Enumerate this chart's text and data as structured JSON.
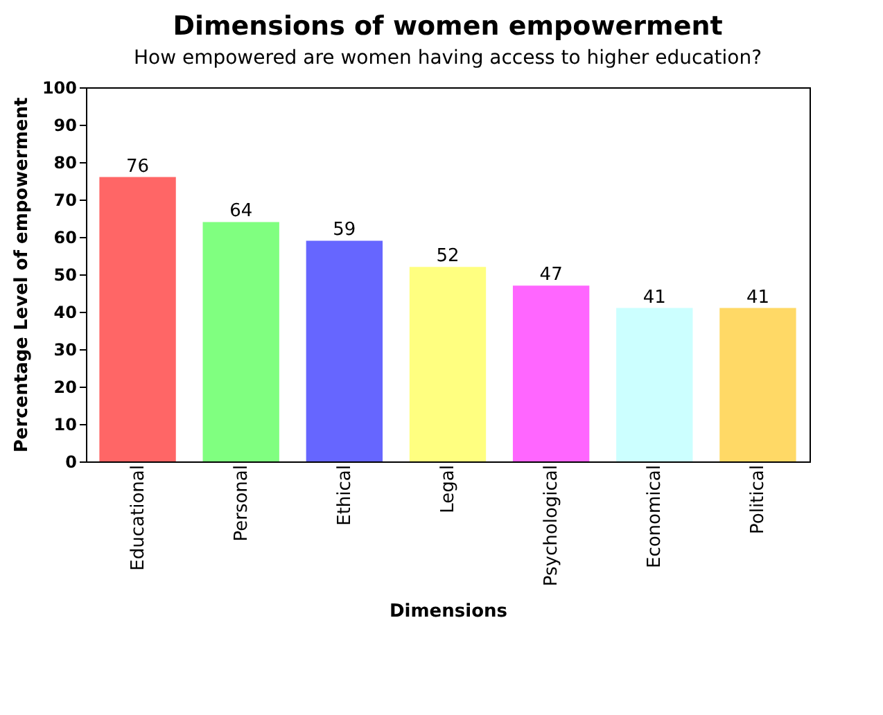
{
  "chart_data": {
    "type": "bar",
    "title": "Dimensions of women empowerment",
    "subtitle": "How empowered are women having access to higher education?",
    "xlabel": "Dimensions",
    "ylabel": "Percentage Level of empowerment",
    "categories": [
      "Educational",
      "Personal",
      "Ethical",
      "Legal",
      "Psychological",
      "Economical",
      "Political"
    ],
    "values": [
      76,
      64,
      59,
      52,
      47,
      41,
      41
    ],
    "colors": [
      "#ff6666",
      "#80ff80",
      "#6666ff",
      "#ffff80",
      "#ff66ff",
      "#ccffff",
      "#ffd966"
    ],
    "ylim": [
      0,
      100
    ],
    "yticks": [
      0,
      10,
      20,
      30,
      40,
      50,
      60,
      70,
      80,
      90,
      100
    ],
    "grid": false,
    "data_labels": true
  }
}
